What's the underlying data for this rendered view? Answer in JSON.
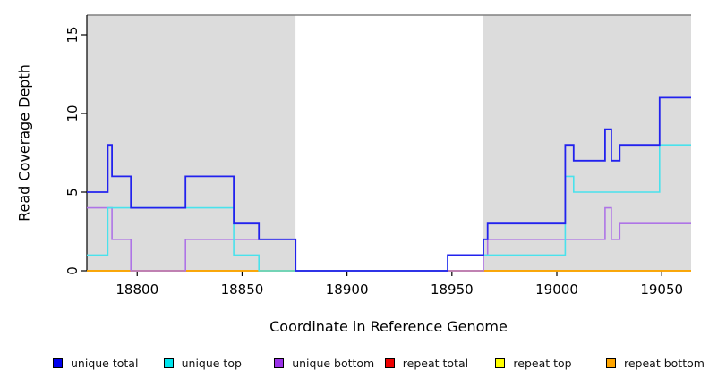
{
  "chart_data": {
    "type": "line",
    "subtype": "step",
    "title": "",
    "xlabel": "Coordinate in Reference Genome",
    "ylabel": "Read Coverage Depth",
    "xlim": [
      18776,
      19064
    ],
    "ylim": [
      0,
      16.25
    ],
    "x_ticks": [
      18800,
      18850,
      18900,
      18950,
      19000,
      19050
    ],
    "y_ticks": [
      0,
      5,
      10,
      15
    ],
    "grid": false,
    "legend_position": "bottom",
    "plot_background": "#ffffff",
    "background_regions": [
      {
        "name": "covered-region-left",
        "x0": 18776,
        "x1": 18875.5,
        "color": "#DCDCDC"
      },
      {
        "name": "gap-region",
        "x0": 18875.5,
        "x1": 18965,
        "color": "#FFFFFF"
      },
      {
        "name": "covered-region-right",
        "x0": 18965,
        "x1": 19064,
        "color": "#DCDCDC"
      }
    ],
    "top_border_color": "#808080",
    "axis_color": "#000000",
    "series": [
      {
        "name": "repeat total",
        "color": "#EE0000",
        "line_width": 1.6,
        "points": [
          [
            18776,
            0
          ],
          [
            19064,
            0
          ]
        ]
      },
      {
        "name": "repeat top",
        "color": "#FFFF00",
        "line_width": 1.6,
        "points": [
          [
            18776,
            0
          ],
          [
            19064,
            0
          ]
        ]
      },
      {
        "name": "repeat bottom",
        "color": "#FFA500",
        "line_width": 1.6,
        "points": [
          [
            18776,
            0
          ],
          [
            19064,
            0
          ]
        ]
      },
      {
        "name": "unique bottom",
        "color": "#AE74E6",
        "line_width": 1.6,
        "points": [
          [
            18776,
            4
          ],
          [
            18788,
            2
          ],
          [
            18797,
            0
          ],
          [
            18823,
            2
          ],
          [
            18875.5,
            0
          ],
          [
            18965,
            1
          ],
          [
            18967,
            2
          ],
          [
            19023,
            4
          ],
          [
            19026,
            2
          ],
          [
            19030,
            3
          ],
          [
            19064,
            3
          ]
        ]
      },
      {
        "name": "unique top",
        "color": "#49E2EC",
        "line_width": 1.6,
        "points": [
          [
            18776,
            1
          ],
          [
            18786,
            4
          ],
          [
            18846,
            1
          ],
          [
            18858,
            0
          ],
          [
            18948,
            1
          ],
          [
            19004,
            6
          ],
          [
            19008,
            5
          ],
          [
            19049,
            8
          ],
          [
            19064,
            8
          ]
        ]
      },
      {
        "name": "unique total",
        "color": "#2222EE",
        "line_width": 1.8,
        "points": [
          [
            18776,
            5
          ],
          [
            18786,
            8
          ],
          [
            18788,
            6
          ],
          [
            18797,
            4
          ],
          [
            18823,
            6
          ],
          [
            18846,
            3
          ],
          [
            18858,
            2
          ],
          [
            18875.5,
            0
          ],
          [
            18948,
            1
          ],
          [
            18965,
            2
          ],
          [
            18967,
            3
          ],
          [
            19004,
            8
          ],
          [
            19008,
            7
          ],
          [
            19023,
            9
          ],
          [
            19026,
            7
          ],
          [
            19030,
            8
          ],
          [
            19049,
            11
          ],
          [
            19064,
            11
          ]
        ]
      }
    ],
    "legend": [
      {
        "label": "unique total",
        "color": "#0000EE"
      },
      {
        "label": "unique top",
        "color": "#00E5EE"
      },
      {
        "label": "unique bottom",
        "color": "#9A32E8"
      },
      {
        "label": "repeat total",
        "color": "#EE0000"
      },
      {
        "label": "repeat top",
        "color": "#FFFF00"
      },
      {
        "label": "repeat bottom",
        "color": "#FFA500"
      }
    ]
  }
}
